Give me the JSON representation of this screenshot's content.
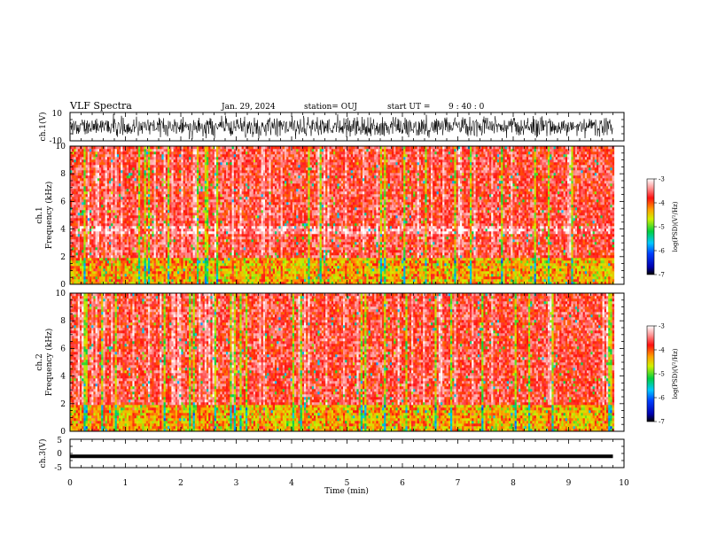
{
  "header": {
    "title": "VLF Spectra",
    "date": "Jan. 29, 2024",
    "station": "station= OUJ",
    "start_prefix": "start  UT  =",
    "start_time": "9  : 40 : 0"
  },
  "chart_data": [
    {
      "id": "ch1-waveform",
      "type": "line",
      "ylabel": "ch.1(V)",
      "ylim": [
        -10,
        10
      ],
      "yticks": [
        -10,
        10
      ],
      "xlim": [
        0,
        10
      ],
      "data_end": 9.8,
      "description_of_signal": "dense noisy waveform filling roughly -9 to 9 V"
    },
    {
      "id": "ch1-spectrogram",
      "type": "heatmap",
      "ylabel_line1": "ch.1",
      "ylabel_line2": "Frequency  (kHz)",
      "ylim": [
        0,
        10
      ],
      "yticks": [
        0,
        2,
        4,
        6,
        8,
        10
      ],
      "xlim": [
        0,
        10
      ],
      "data_end": 9.8,
      "colorbar": {
        "label": "log(PSD)(V²/Hz)",
        "range": [
          -7,
          -3
        ],
        "ticks": [
          -3,
          -4,
          -5,
          -6,
          -7
        ]
      }
    },
    {
      "id": "ch2-spectrogram",
      "type": "heatmap",
      "ylabel_line1": "ch.2",
      "ylabel_line2": "Frequency  (kHz)",
      "ylim": [
        0,
        10
      ],
      "yticks": [
        0,
        2,
        4,
        6,
        8,
        10
      ],
      "xlim": [
        0,
        10
      ],
      "data_end": 9.8,
      "colorbar": {
        "label": "log(PSD)(V²/Hz)",
        "range": [
          -7,
          -3
        ],
        "ticks": [
          -3,
          -4,
          -5,
          -6,
          -7
        ]
      }
    },
    {
      "id": "ch3-waveform",
      "type": "line",
      "ylabel": "ch.3(V)",
      "ylim": [
        -5,
        5
      ],
      "yticks": [
        -5,
        0,
        5
      ],
      "xlim": [
        0,
        10
      ],
      "data_end": 9.8,
      "value": -1.0
    }
  ],
  "x_axis": {
    "label": "Time  (min)",
    "ticks": [
      0,
      1,
      2,
      3,
      4,
      5,
      6,
      7,
      8,
      9,
      10
    ]
  }
}
